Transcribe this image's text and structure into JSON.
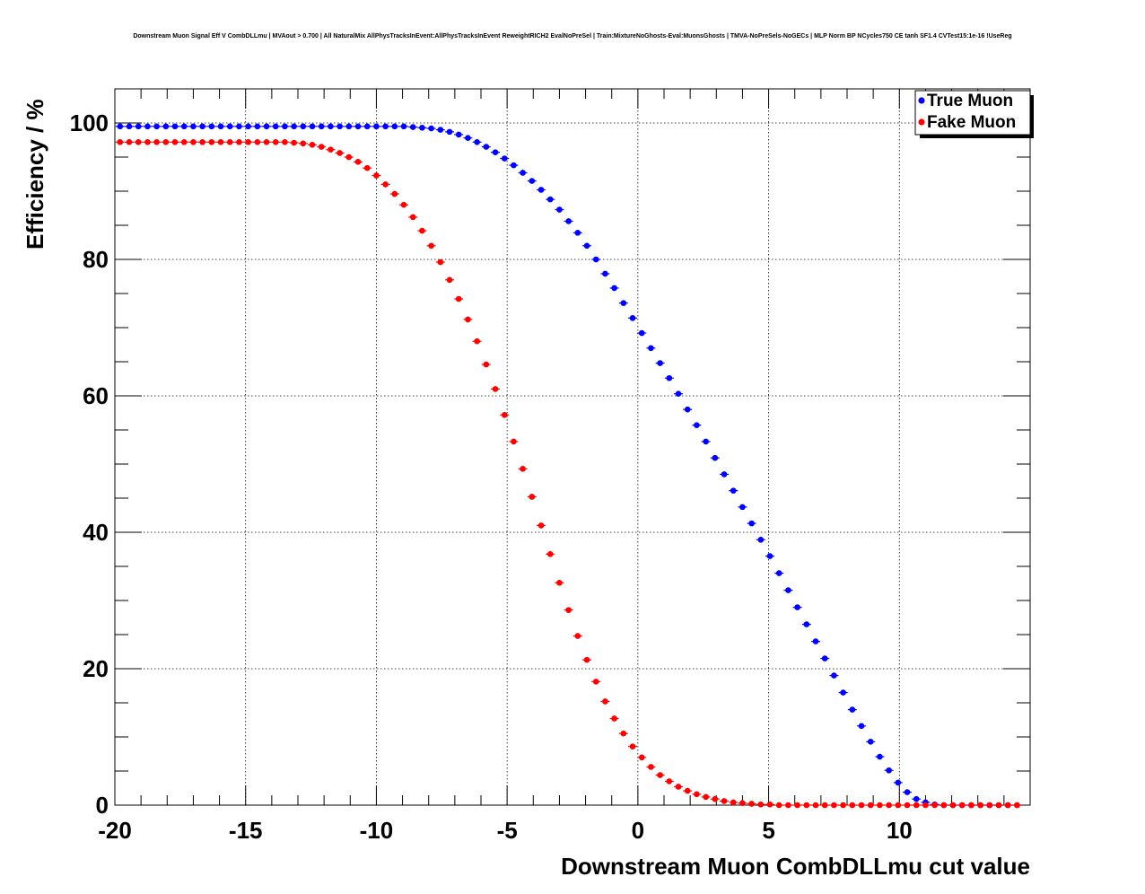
{
  "chart_data": {
    "type": "scatter",
    "title": "Downstream Muon Signal Eff V CombDLLmu | MVAout > 0.700 | All NaturalMix AllPhysTracksInEvent:AllPhysTracksInEvent ReweightRICH2 EvalNoPreSel | Train:MixtureNoGhosts-Eval:MuonsGhosts | TMVA-NoPreSels-NoGECs | MLP Norm BP NCycles750 CE tanh SF1.4 CVTest15:1e-16 !UseReg",
    "xlabel": "Downstream Muon CombDLLmu cut value",
    "ylabel": "Efficiency / %",
    "xlim": [
      -20,
      15
    ],
    "ylim": [
      0,
      105
    ],
    "x_ticks": [
      -20,
      -15,
      -10,
      -5,
      0,
      5,
      10
    ],
    "x_tick_labels": [
      "-20",
      "-15",
      "-10",
      "-5",
      "0",
      "5",
      "10"
    ],
    "y_ticks": [
      0,
      20,
      40,
      60,
      80,
      100
    ],
    "y_tick_labels": [
      "0",
      "20",
      "40",
      "60",
      "80",
      "100"
    ],
    "grid": true,
    "legend": "top-right",
    "series": [
      {
        "name": "True Muon",
        "color": "#0000ff",
        "x": [
          -19.8,
          -19.45,
          -19.1,
          -18.75,
          -18.4,
          -18.05,
          -17.7,
          -17.35,
          -17.0,
          -16.65,
          -16.3,
          -15.95,
          -15.6,
          -15.25,
          -14.9,
          -14.55,
          -14.2,
          -13.85,
          -13.5,
          -13.15,
          -12.8,
          -12.45,
          -12.1,
          -11.75,
          -11.4,
          -11.05,
          -10.7,
          -10.35,
          -10.0,
          -9.65,
          -9.3,
          -8.95,
          -8.6,
          -8.25,
          -7.9,
          -7.55,
          -7.2,
          -6.85,
          -6.5,
          -6.15,
          -5.8,
          -5.45,
          -5.1,
          -4.75,
          -4.4,
          -4.05,
          -3.7,
          -3.35,
          -3.0,
          -2.65,
          -2.3,
          -1.95,
          -1.6,
          -1.25,
          -0.9,
          -0.55,
          -0.2,
          0.15,
          0.5,
          0.85,
          1.2,
          1.55,
          1.9,
          2.25,
          2.6,
          2.95,
          3.3,
          3.65,
          4.0,
          4.35,
          4.7,
          5.05,
          5.4,
          5.75,
          6.1,
          6.45,
          6.8,
          7.15,
          7.5,
          7.85,
          8.2,
          8.55,
          8.9,
          9.25,
          9.6,
          9.95,
          10.3,
          10.65,
          11.0,
          11.35,
          11.7,
          12.05,
          12.4,
          12.75,
          13.1,
          13.45,
          13.8,
          14.15,
          14.5
        ],
        "values": [
          99.5,
          99.5,
          99.5,
          99.5,
          99.5,
          99.5,
          99.5,
          99.5,
          99.5,
          99.5,
          99.5,
          99.5,
          99.5,
          99.5,
          99.5,
          99.5,
          99.5,
          99.5,
          99.5,
          99.5,
          99.5,
          99.5,
          99.5,
          99.5,
          99.5,
          99.5,
          99.5,
          99.5,
          99.5,
          99.5,
          99.5,
          99.5,
          99.4,
          99.3,
          99.2,
          99.0,
          98.7,
          98.3,
          97.8,
          97.2,
          96.5,
          95.7,
          94.8,
          93.8,
          92.7,
          91.5,
          90.2,
          88.8,
          87.3,
          85.6,
          83.9,
          82.0,
          80.0,
          77.9,
          75.8,
          73.6,
          71.4,
          69.2,
          67.0,
          64.8,
          62.6,
          60.3,
          58.0,
          55.7,
          53.3,
          50.9,
          48.5,
          46.1,
          43.7,
          41.3,
          38.9,
          36.5,
          34.0,
          31.5,
          29.0,
          26.5,
          24.0,
          21.5,
          19.0,
          16.5,
          14.0,
          11.6,
          9.3,
          7.1,
          5.1,
          3.3,
          1.9,
          0.9,
          0.4,
          0.1,
          0.0,
          0.0,
          0.0,
          0.0,
          0.0,
          0.0,
          0.0,
          0.0,
          0.0
        ]
      },
      {
        "name": "Fake Muon",
        "color": "#ff0000",
        "x": [
          -19.8,
          -19.45,
          -19.1,
          -18.75,
          -18.4,
          -18.05,
          -17.7,
          -17.35,
          -17.0,
          -16.65,
          -16.3,
          -15.95,
          -15.6,
          -15.25,
          -14.9,
          -14.55,
          -14.2,
          -13.85,
          -13.5,
          -13.15,
          -12.8,
          -12.45,
          -12.1,
          -11.75,
          -11.4,
          -11.05,
          -10.7,
          -10.35,
          -10.0,
          -9.65,
          -9.3,
          -8.95,
          -8.6,
          -8.25,
          -7.9,
          -7.55,
          -7.2,
          -6.85,
          -6.5,
          -6.15,
          -5.8,
          -5.45,
          -5.1,
          -4.75,
          -4.4,
          -4.05,
          -3.7,
          -3.35,
          -3.0,
          -2.65,
          -2.3,
          -1.95,
          -1.6,
          -1.25,
          -0.9,
          -0.55,
          -0.2,
          0.15,
          0.5,
          0.85,
          1.2,
          1.55,
          1.9,
          2.25,
          2.6,
          2.95,
          3.3,
          3.65,
          4.0,
          4.35,
          4.7,
          5.05,
          5.4,
          5.75,
          6.1,
          6.45,
          6.8,
          7.15,
          7.5,
          7.85,
          8.2,
          8.55,
          8.9,
          9.25,
          9.6,
          9.95,
          10.3,
          10.65,
          11.0,
          11.35,
          11.7,
          12.05,
          12.4,
          12.75,
          13.1,
          13.45,
          13.8,
          14.15,
          14.5
        ],
        "values": [
          97.2,
          97.2,
          97.2,
          97.2,
          97.2,
          97.2,
          97.2,
          97.2,
          97.2,
          97.2,
          97.2,
          97.2,
          97.2,
          97.2,
          97.2,
          97.2,
          97.2,
          97.2,
          97.2,
          97.1,
          97.0,
          96.8,
          96.5,
          96.1,
          95.6,
          95.0,
          94.3,
          93.4,
          92.3,
          91.0,
          89.6,
          88.0,
          86.2,
          84.2,
          82.0,
          79.6,
          77.0,
          74.2,
          71.2,
          68.0,
          64.6,
          61.0,
          57.2,
          53.3,
          49.3,
          45.2,
          41.0,
          36.8,
          32.6,
          28.6,
          24.8,
          21.3,
          18.1,
          15.2,
          12.7,
          10.5,
          8.6,
          7.0,
          5.6,
          4.4,
          3.5,
          2.7,
          2.1,
          1.6,
          1.2,
          0.9,
          0.6,
          0.4,
          0.3,
          0.2,
          0.1,
          0.1,
          0.0,
          0.0,
          0.0,
          0.0,
          0.0,
          0.0,
          0.0,
          0.0,
          0.0,
          0.0,
          0.0,
          0.0,
          0.0,
          0.0,
          0.0,
          0.0,
          0.0,
          0.0,
          0.0,
          0.0,
          0.0,
          0.0,
          0.0,
          0.0,
          0.0,
          0.0,
          0.0
        ]
      }
    ]
  }
}
